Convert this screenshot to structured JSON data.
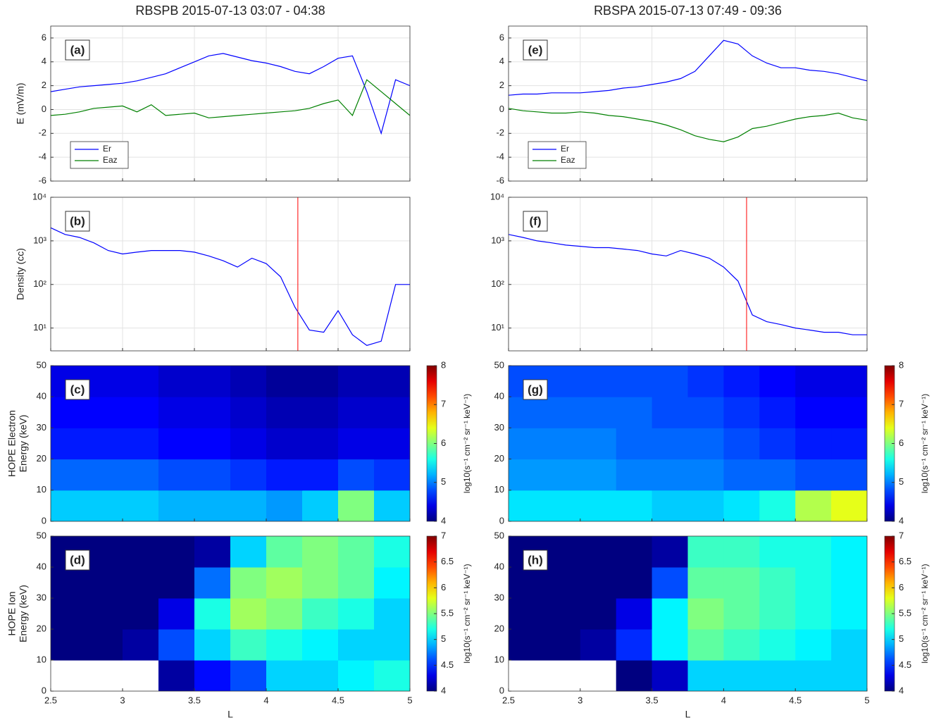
{
  "chart_data": [
    {
      "type": "line",
      "title": "RBSPB 2015-07-13 03:07 - 04:38",
      "panel_label": "(a)",
      "ylabel": [
        "E (mV/m)"
      ],
      "x": [
        2.5,
        2.6,
        2.7,
        2.8,
        2.9,
        3.0,
        3.1,
        3.2,
        3.3,
        3.4,
        3.5,
        3.6,
        3.7,
        3.8,
        3.9,
        4.0,
        4.1,
        4.2,
        4.3,
        4.4,
        4.5,
        4.6,
        4.7,
        4.8,
        4.9,
        5.0
      ],
      "series": [
        {
          "name": "Er",
          "color": "#0000ff",
          "values": [
            1.5,
            1.7,
            1.9,
            2.0,
            2.1,
            2.2,
            2.4,
            2.7,
            3.0,
            3.5,
            4.0,
            4.5,
            4.7,
            4.4,
            4.1,
            3.9,
            3.6,
            3.2,
            3.0,
            3.6,
            4.3,
            4.5,
            1.5,
            -2.0,
            2.5,
            2.0
          ]
        },
        {
          "name": "Eaz",
          "color": "#008000",
          "values": [
            -0.5,
            -0.4,
            -0.2,
            0.1,
            0.2,
            0.3,
            -0.2,
            0.4,
            -0.5,
            -0.4,
            -0.3,
            -0.7,
            -0.6,
            -0.5,
            -0.4,
            -0.3,
            -0.2,
            -0.1,
            0.1,
            0.5,
            0.8,
            -0.5,
            2.5,
            1.5,
            0.5,
            -0.5
          ]
        }
      ],
      "xlim": [
        2.5,
        5
      ],
      "xticks": [
        2.5,
        3,
        3.5,
        4,
        4.5,
        5
      ],
      "show_xticklabels": false,
      "ylim": [
        -6,
        7
      ],
      "yticks": [
        -6,
        -4,
        -2,
        0,
        2,
        4,
        6
      ],
      "grid": true,
      "legend": "lower left"
    },
    {
      "type": "line",
      "panel_label": "(b)",
      "ylabel": [
        "Density (cc)"
      ],
      "yscale": "log",
      "x": [
        2.5,
        2.6,
        2.7,
        2.8,
        2.9,
        3.0,
        3.1,
        3.2,
        3.3,
        3.4,
        3.5,
        3.6,
        3.7,
        3.8,
        3.9,
        4.0,
        4.1,
        4.2,
        4.3,
        4.4,
        4.5,
        4.6,
        4.7,
        4.8,
        4.9,
        5.0
      ],
      "series": [
        {
          "name": "Density",
          "color": "#0000ff",
          "values": [
            2000,
            1400,
            1200,
            900,
            600,
            500,
            550,
            600,
            600,
            600,
            550,
            450,
            350,
            250,
            400,
            300,
            150,
            30,
            9,
            8,
            25,
            7,
            4,
            5,
            100,
            100
          ]
        }
      ],
      "vline": {
        "x": 4.22,
        "color": "#ff0000"
      },
      "xlim": [
        2.5,
        5
      ],
      "xticks": [
        2.5,
        3,
        3.5,
        4,
        4.5,
        5
      ],
      "show_xticklabels": false,
      "ylim": [
        3,
        10000
      ],
      "yticks": [
        {
          "value": 10,
          "label": "10¹"
        },
        {
          "value": 100,
          "label": "10²"
        },
        {
          "value": 1000,
          "label": "10³"
        },
        {
          "value": 10000,
          "label": "10⁴"
        }
      ],
      "grid": true
    },
    {
      "type": "heatmap",
      "panel_label": "(c)",
      "ylabel": [
        "HOPE Electron",
        "Energy (keV)"
      ],
      "xbins": [
        2.5,
        2.75,
        3.0,
        3.25,
        3.5,
        3.75,
        4.0,
        4.25,
        4.5,
        4.75,
        5.0
      ],
      "ybins": [
        0,
        10,
        20,
        30,
        40,
        50
      ],
      "z": [
        [
          5.3,
          5.3,
          5.3,
          5.2,
          5.2,
          5.2,
          5.1,
          5.3,
          6.0,
          5.3
        ],
        [
          4.9,
          4.9,
          4.9,
          4.8,
          4.8,
          4.7,
          4.6,
          4.6,
          4.8,
          4.7
        ],
        [
          4.6,
          4.6,
          4.6,
          4.5,
          4.5,
          4.4,
          4.3,
          4.3,
          4.4,
          4.4
        ],
        [
          4.5,
          4.5,
          4.5,
          4.4,
          4.4,
          4.3,
          4.2,
          4.2,
          4.3,
          4.3
        ],
        [
          4.4,
          4.4,
          4.4,
          4.3,
          4.3,
          4.2,
          4.1,
          4.1,
          4.2,
          4.2
        ]
      ],
      "colormap": "jet",
      "clim": [
        4,
        8
      ],
      "cticks": [
        4,
        5,
        6,
        7,
        8
      ],
      "clabel": "log10(s⁻¹ cm⁻² sr⁻¹ keV⁻¹)",
      "xlim": [
        2.5,
        5
      ],
      "xticks": [
        2.5,
        3,
        3.5,
        4,
        4.5,
        5
      ],
      "show_xticklabels": false,
      "ylim": [
        0,
        50
      ],
      "yticks": [
        0,
        10,
        20,
        30,
        40,
        50
      ]
    },
    {
      "type": "heatmap",
      "panel_label": "(d)",
      "ylabel": [
        "HOPE Ion",
        "Energy (keV)"
      ],
      "xlabel": "L",
      "xbins": [
        2.5,
        2.75,
        3.0,
        3.25,
        3.5,
        3.75,
        4.0,
        4.25,
        4.5,
        4.75,
        5.0
      ],
      "ybins": [
        0,
        10,
        20,
        30,
        40,
        50
      ],
      "z": [
        [
          null,
          null,
          null,
          4.1,
          4.4,
          4.6,
          5.0,
          5.0,
          5.1,
          5.2
        ],
        [
          4.0,
          4.0,
          4.1,
          4.6,
          5.0,
          5.3,
          5.2,
          5.1,
          5.0,
          5.0
        ],
        [
          4.0,
          4.0,
          4.0,
          4.3,
          5.2,
          5.6,
          5.5,
          5.3,
          5.2,
          5.0
        ],
        [
          4.0,
          4.0,
          4.0,
          4.0,
          4.7,
          5.5,
          5.6,
          5.5,
          5.4,
          5.1
        ],
        [
          4.0,
          4.0,
          4.0,
          4.0,
          4.1,
          5.0,
          5.4,
          5.5,
          5.4,
          5.2
        ]
      ],
      "colormap": "jet",
      "clim": [
        4,
        7
      ],
      "cticks": [
        4,
        4.5,
        5,
        5.5,
        6,
        6.5,
        7
      ],
      "clabel": "log10(s⁻¹ cm⁻² sr⁻¹ keV⁻¹)",
      "xlim": [
        2.5,
        5
      ],
      "xticks": [
        2.5,
        3,
        3.5,
        4,
        4.5,
        5
      ],
      "show_xticklabels": true,
      "ylim": [
        0,
        50
      ],
      "yticks": [
        0,
        10,
        20,
        30,
        40,
        50
      ]
    },
    {
      "type": "line",
      "title": "RBSPA 2015-07-13 07:49 - 09:36",
      "panel_label": "(e)",
      "x": [
        2.5,
        2.6,
        2.7,
        2.8,
        2.9,
        3.0,
        3.1,
        3.2,
        3.3,
        3.4,
        3.5,
        3.6,
        3.7,
        3.8,
        3.9,
        4.0,
        4.1,
        4.2,
        4.3,
        4.4,
        4.5,
        4.6,
        4.7,
        4.8,
        4.9,
        5.0
      ],
      "series": [
        {
          "name": "Er",
          "color": "#0000ff",
          "values": [
            1.2,
            1.3,
            1.3,
            1.4,
            1.4,
            1.4,
            1.5,
            1.6,
            1.8,
            1.9,
            2.1,
            2.3,
            2.6,
            3.2,
            4.5,
            5.8,
            5.5,
            4.5,
            3.9,
            3.5,
            3.5,
            3.3,
            3.2,
            3.0,
            2.7,
            2.4
          ]
        },
        {
          "name": "Eaz",
          "color": "#008000",
          "values": [
            0.1,
            -0.1,
            -0.2,
            -0.3,
            -0.3,
            -0.2,
            -0.3,
            -0.5,
            -0.6,
            -0.8,
            -1.0,
            -1.3,
            -1.7,
            -2.2,
            -2.5,
            -2.7,
            -2.3,
            -1.6,
            -1.4,
            -1.1,
            -0.8,
            -0.6,
            -0.5,
            -0.3,
            -0.7,
            -0.9
          ]
        }
      ],
      "xlim": [
        2.5,
        5
      ],
      "xticks": [
        2.5,
        3,
        3.5,
        4,
        4.5,
        5
      ],
      "show_xticklabels": false,
      "ylim": [
        -6,
        7
      ],
      "yticks": [
        -6,
        -4,
        -2,
        0,
        2,
        4,
        6
      ],
      "grid": true,
      "legend": "lower left"
    },
    {
      "type": "line",
      "panel_label": "(f)",
      "yscale": "log",
      "x": [
        2.5,
        2.6,
        2.7,
        2.8,
        2.9,
        3.0,
        3.1,
        3.2,
        3.3,
        3.4,
        3.5,
        3.6,
        3.7,
        3.8,
        3.9,
        4.0,
        4.1,
        4.2,
        4.3,
        4.4,
        4.5,
        4.6,
        4.7,
        4.8,
        4.9,
        5.0
      ],
      "series": [
        {
          "name": "Density",
          "color": "#0000ff",
          "values": [
            1400,
            1200,
            1000,
            900,
            800,
            750,
            700,
            700,
            650,
            600,
            500,
            450,
            600,
            500,
            400,
            250,
            120,
            20,
            14,
            12,
            10,
            9,
            8,
            8,
            7,
            7
          ]
        }
      ],
      "vline": {
        "x": 4.16,
        "color": "#ff0000"
      },
      "xlim": [
        2.5,
        5
      ],
      "xticks": [
        2.5,
        3,
        3.5,
        4,
        4.5,
        5
      ],
      "show_xticklabels": false,
      "ylim": [
        3,
        10000
      ],
      "yticks": [
        {
          "value": 10,
          "label": "10¹"
        },
        {
          "value": 100,
          "label": "10²"
        },
        {
          "value": 1000,
          "label": "10³"
        },
        {
          "value": 10000,
          "label": "10⁴"
        }
      ],
      "grid": true
    },
    {
      "type": "heatmap",
      "panel_label": "(g)",
      "xbins": [
        2.5,
        2.75,
        3.0,
        3.25,
        3.5,
        3.75,
        4.0,
        4.25,
        4.5,
        4.75,
        5.0
      ],
      "ybins": [
        0,
        10,
        20,
        30,
        40,
        50
      ],
      "z": [
        [
          5.4,
          5.4,
          5.4,
          5.4,
          5.3,
          5.3,
          5.4,
          5.6,
          6.2,
          6.4
        ],
        [
          5.1,
          5.1,
          5.1,
          5.0,
          5.0,
          5.0,
          4.9,
          4.9,
          4.8,
          4.8
        ],
        [
          5.0,
          5.0,
          5.0,
          4.9,
          4.9,
          4.9,
          4.8,
          4.7,
          4.6,
          4.6
        ],
        [
          4.9,
          4.9,
          4.9,
          4.9,
          4.8,
          4.8,
          4.7,
          4.6,
          4.5,
          4.5
        ],
        [
          4.8,
          4.8,
          4.8,
          4.8,
          4.8,
          4.7,
          4.6,
          4.5,
          4.4,
          4.4
        ]
      ],
      "colormap": "jet",
      "clim": [
        4,
        8
      ],
      "cticks": [
        4,
        5,
        6,
        7,
        8
      ],
      "clabel": "log10(s⁻¹ cm⁻² sr⁻¹ keV⁻¹)",
      "xlim": [
        2.5,
        5
      ],
      "xticks": [
        2.5,
        3,
        3.5,
        4,
        4.5,
        5
      ],
      "show_xticklabels": false,
      "ylim": [
        0,
        50
      ],
      "yticks": [
        0,
        10,
        20,
        30,
        40,
        50
      ]
    },
    {
      "type": "heatmap",
      "panel_label": "(h)",
      "xlabel": "L",
      "xbins": [
        2.5,
        2.75,
        3.0,
        3.25,
        3.5,
        3.75,
        4.0,
        4.25,
        4.5,
        4.75,
        5.0
      ],
      "ybins": [
        0,
        10,
        20,
        30,
        40,
        50
      ],
      "z": [
        [
          null,
          null,
          null,
          4.0,
          4.2,
          5.0,
          5.0,
          5.0,
          5.0,
          5.0
        ],
        [
          4.0,
          4.0,
          4.1,
          4.5,
          5.1,
          5.4,
          5.3,
          5.2,
          5.1,
          5.0
        ],
        [
          4.0,
          4.0,
          4.0,
          4.3,
          5.1,
          5.5,
          5.4,
          5.3,
          5.2,
          5.1
        ],
        [
          4.0,
          4.0,
          4.0,
          4.0,
          4.6,
          5.4,
          5.4,
          5.3,
          5.2,
          5.1
        ],
        [
          4.0,
          4.0,
          4.0,
          4.0,
          4.1,
          5.3,
          5.3,
          5.2,
          5.2,
          5.1
        ]
      ],
      "colormap": "jet",
      "clim": [
        4,
        7
      ],
      "cticks": [
        4,
        4.5,
        5,
        5.5,
        6,
        6.5,
        7
      ],
      "clabel": "log10(s⁻¹ cm⁻² sr⁻¹ keV⁻¹)",
      "xlim": [
        2.5,
        5
      ],
      "xticks": [
        2.5,
        3,
        3.5,
        4,
        4.5,
        5
      ],
      "show_xticklabels": true,
      "ylim": [
        0,
        50
      ],
      "yticks": [
        0,
        10,
        20,
        30,
        40,
        50
      ]
    }
  ]
}
